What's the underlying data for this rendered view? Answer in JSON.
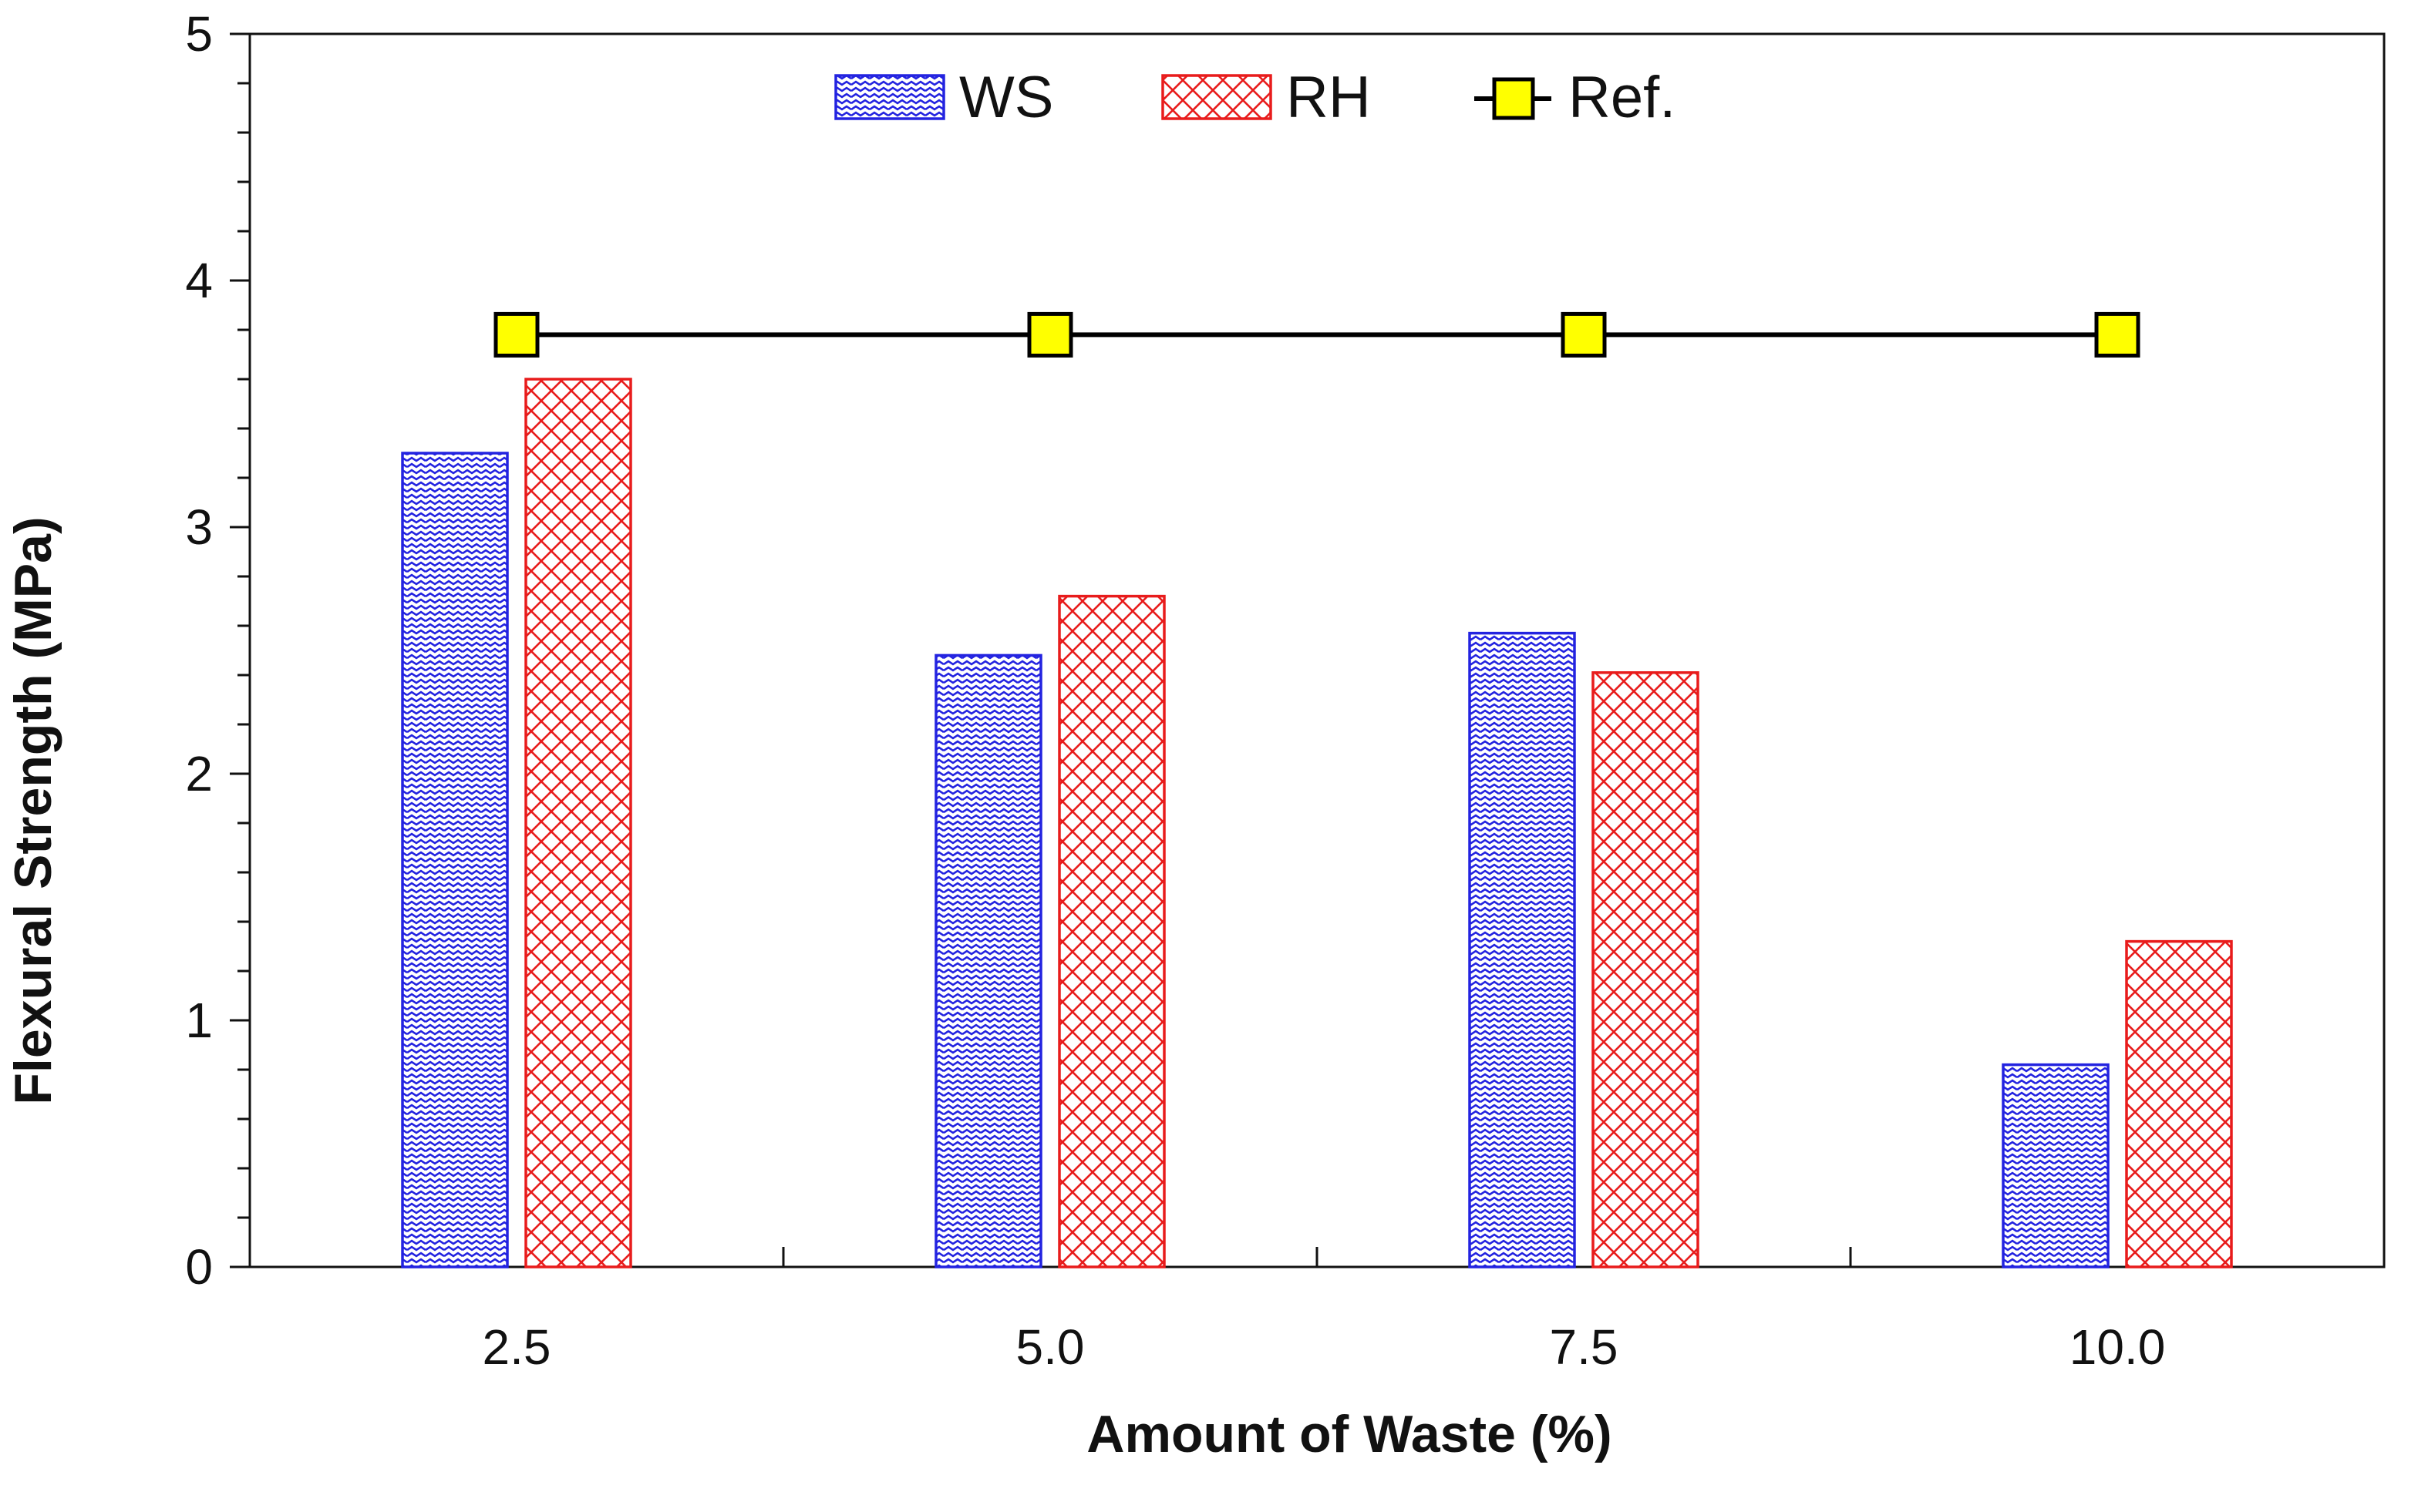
{
  "chart_data": {
    "type": "bar",
    "title": "",
    "xlabel": "Amount of Waste (%)",
    "ylabel": "Flexural Strength (MPa)",
    "categories": [
      "2.5",
      "5.0",
      "7.5",
      "10.0"
    ],
    "ylim": [
      0,
      5
    ],
    "yticks": [
      "0",
      "1",
      "2",
      "3",
      "4",
      "5"
    ],
    "grid": false,
    "legend_position": "top-center",
    "series": [
      {
        "name": "WS",
        "kind": "bar",
        "pattern": "zigzag",
        "color": "#2323e0",
        "values": [
          3.3,
          2.48,
          2.57,
          0.82
        ]
      },
      {
        "name": "RH",
        "kind": "bar",
        "pattern": "crosshatch",
        "color": "#e81c1c",
        "values": [
          3.6,
          2.72,
          2.41,
          1.32
        ]
      },
      {
        "name": "Ref.",
        "kind": "line",
        "marker": "square",
        "color": "#000000",
        "marker_fill": "#ffff00",
        "values": [
          3.78,
          3.78,
          3.78,
          3.78
        ]
      }
    ]
  }
}
